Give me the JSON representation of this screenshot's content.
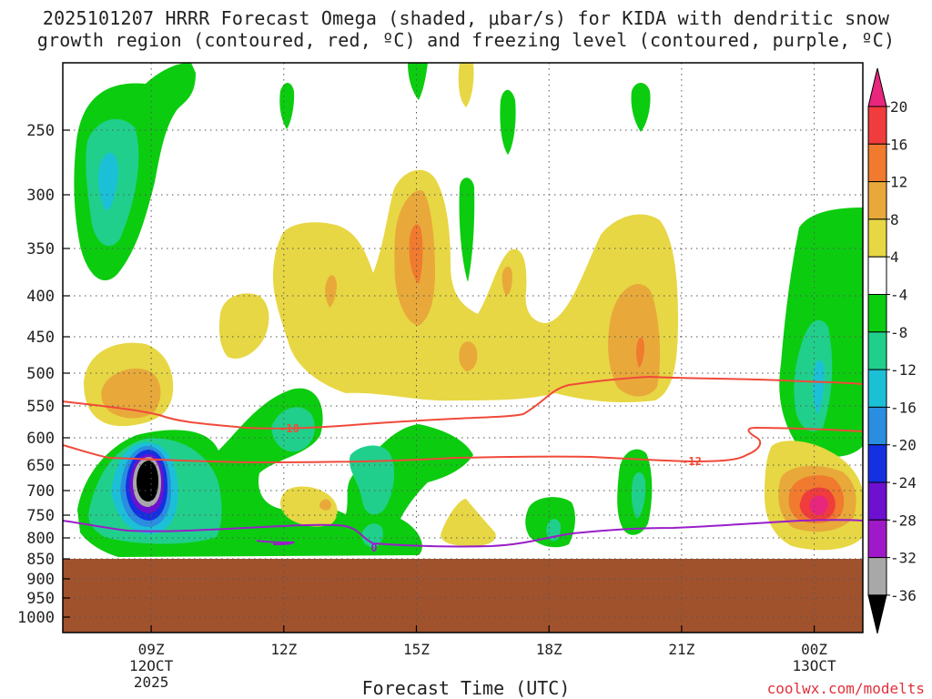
{
  "chart_data": {
    "type": "heatmap",
    "title_line1": "2025101207 HRRR Forecast Omega (shaded, μbar/s) for KIDA with dendritic snow",
    "title_line2": "growth region (contoured, red, ºC) and freezing level (contoured, purple, ºC)",
    "xlabel": "Forecast Time (UTC)",
    "credit": "coolwx.com/modelts",
    "x_range_hours": [
      7.0,
      25.1
    ],
    "x_ticks": [
      {
        "hour": 9,
        "label": "09Z",
        "sub1": "12OCT",
        "sub2": "2025"
      },
      {
        "hour": 12,
        "label": "12Z",
        "sub1": "",
        "sub2": ""
      },
      {
        "hour": 15,
        "label": "15Z",
        "sub1": "",
        "sub2": ""
      },
      {
        "hour": 18,
        "label": "18Z",
        "sub1": "",
        "sub2": ""
      },
      {
        "hour": 21,
        "label": "21Z",
        "sub1": "",
        "sub2": ""
      },
      {
        "hour": 24,
        "label": "00Z",
        "sub1": "13OCT",
        "sub2": ""
      }
    ],
    "y_levels_hpa": [
      250,
      300,
      350,
      400,
      450,
      500,
      550,
      600,
      650,
      700,
      750,
      800,
      850,
      900,
      950,
      1000
    ],
    "ground_top_hpa": 850,
    "colorbar": {
      "labels": [
        "20",
        "16",
        "12",
        "8",
        "4",
        "-4",
        "-8",
        "-12",
        "-16",
        "-20",
        "-24",
        "-28",
        "-32",
        "-36"
      ],
      "colors": [
        "#e8267e",
        "#f03c3c",
        "#f07a2e",
        "#e8a93a",
        "#e7d744",
        "#ffffff",
        "#0ccc10",
        "#21cf8c",
        "#1cc0d6",
        "#2a8de0",
        "#1530e0",
        "#6d10d0",
        "#a019c8",
        "#a8a8a8",
        "#000000"
      ]
    },
    "contours": {
      "dgz_red": [
        {
          "label": "-18",
          "label_hour": 12.1,
          "label_hpa": 589
        },
        {
          "label": "-12",
          "label_hour": 21.0,
          "label_hpa": 634
        }
      ],
      "freezing_purple": [
        {
          "label": "0",
          "label_hour": 14.0,
          "label_hpa": 820
        }
      ]
    }
  }
}
